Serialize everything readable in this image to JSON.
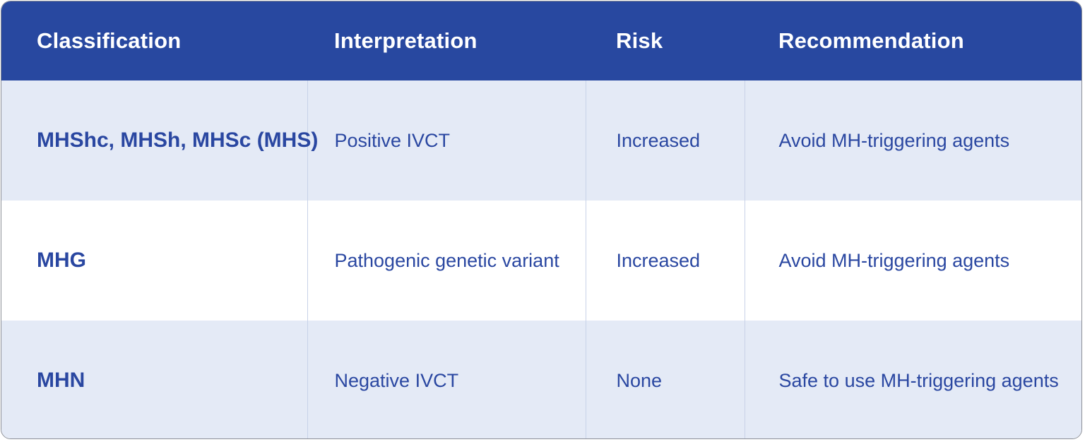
{
  "table": {
    "headers": [
      "Classification",
      "Interpretation",
      "Risk",
      "Recommendation"
    ],
    "rows": [
      [
        "MHShc, MHSh, MHSc (MHS)",
        "Positive IVCT",
        "Increased",
        "Avoid MH-triggering agents"
      ],
      [
        "MHG",
        "Pathogenic genetic variant",
        "Increased",
        "Avoid MH-triggering agents"
      ],
      [
        "MHN",
        "Negative IVCT",
        "None",
        "Safe to use MH-triggering agents"
      ]
    ]
  },
  "colors": {
    "header_bg": "#2848a0",
    "header_text": "#ffffff",
    "cell_text": "#2a47a1",
    "shaded_row_bg": "#e4eaf6",
    "plain_row_bg": "#ffffff"
  }
}
